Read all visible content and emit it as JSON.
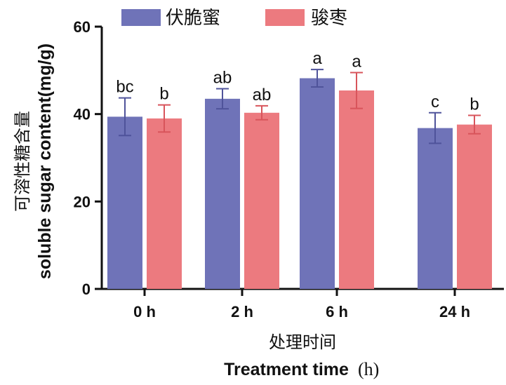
{
  "chart_data": {
    "type": "bar",
    "categories": [
      "0 h",
      "2 h",
      "6 h",
      "24 h"
    ],
    "series": [
      {
        "name": "伏脆蜜",
        "color": "#6f73b8",
        "values": [
          39.4,
          43.5,
          48.2,
          36.8
        ],
        "errors": [
          4.3,
          2.3,
          2.0,
          3.5
        ],
        "letters": [
          "bc",
          "ab",
          "a",
          "c"
        ]
      },
      {
        "name": "骏枣",
        "color": "#ec7a7f",
        "values": [
          39.0,
          40.3,
          45.4,
          37.6
        ],
        "errors": [
          3.1,
          1.6,
          4.1,
          2.1
        ],
        "letters": [
          "b",
          "ab",
          "a",
          "b"
        ]
      }
    ],
    "ylim": [
      0,
      60
    ],
    "yticks": [
      "0",
      "20",
      "40",
      "60"
    ],
    "ylabel_cn": "可溶性糖含量",
    "ylabel_en": "soluble sugar content(mg/g)",
    "xlabel_cn": "处理时间",
    "xlabel_en": "Treatment time",
    "xlabel_unit": "(h)",
    "legend_position": "top"
  }
}
